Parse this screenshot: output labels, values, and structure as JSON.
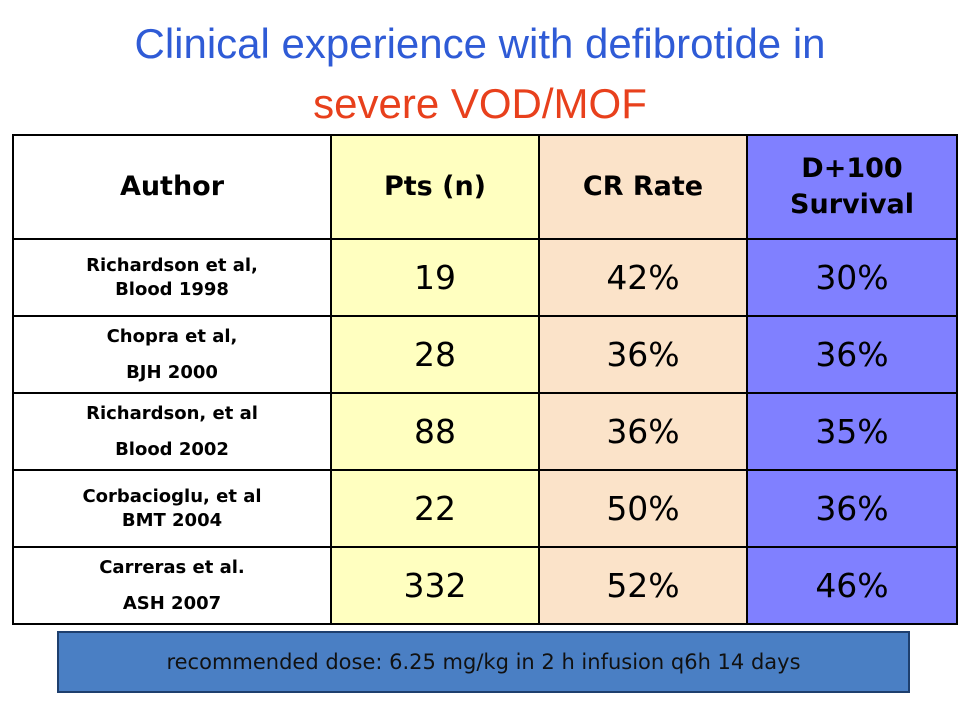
{
  "title": {
    "line1": "Clinical experience with defibrotide in",
    "line2": "severe VOD/MOF"
  },
  "table": {
    "headers": [
      "Author",
      "Pts (n)",
      "CR Rate",
      "D+100 Survival"
    ],
    "survival_header_lines": [
      "D+100",
      "Survival"
    ],
    "rows": [
      {
        "author": [
          "Richardson et al,",
          "Blood 1998"
        ],
        "pts": "19",
        "cr": "42%",
        "survival": "30%"
      },
      {
        "author": [
          "Chopra et al,",
          "BJH 2000"
        ],
        "pts": "28",
        "cr": "36%",
        "survival": "36%"
      },
      {
        "author": [
          "Richardson, et al",
          "Blood 2002"
        ],
        "pts": "88",
        "cr": "36%",
        "survival": "35%"
      },
      {
        "author": [
          "Corbacioglu, et al",
          "BMT 2004"
        ],
        "pts": "22",
        "cr": "50%",
        "survival": "36%"
      },
      {
        "author": [
          "Carreras et al.",
          "ASH 2007"
        ],
        "pts": "332",
        "cr": "52%",
        "survival": "46%"
      }
    ]
  },
  "note": "recommended dose: 6.25 mg/kg in 2 h infusion q6h 14 days",
  "colors": {
    "title_line1": "#2f5bd6",
    "title_line2": "#e8401c",
    "pts_column": "#ffffc0",
    "cr_column": "#fbe3c9",
    "survival_column": "#8080ff",
    "note_background": "#4a7fc4"
  }
}
